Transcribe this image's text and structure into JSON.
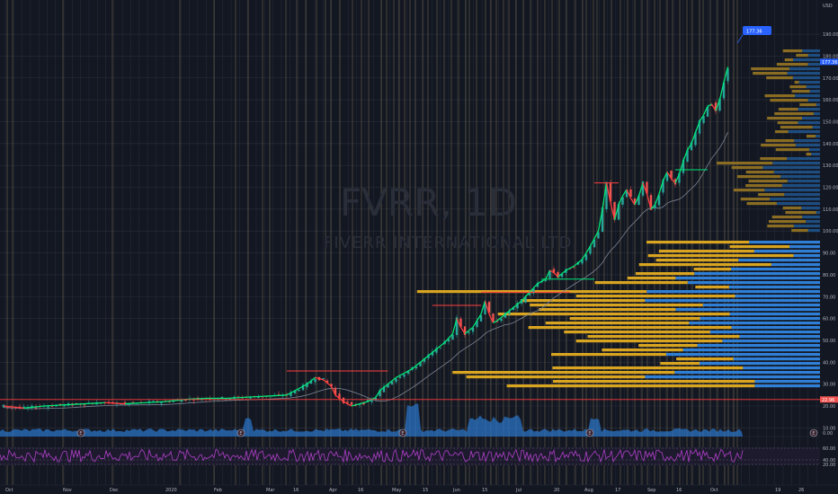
{
  "chart_data": {
    "type": "candlestick",
    "title": "FVRR, 1D",
    "subtitle": "FIVERR INTERNATIONAL LTD.",
    "currency": "USD",
    "y_ticks": [
      "190.00",
      "180.00",
      "170.00",
      "160.00",
      "150.00",
      "140.00",
      "130.00",
      "120.00",
      "110.00",
      "100.00",
      "90.00",
      "80.00",
      "70.00",
      "60.00",
      "50.00",
      "40.00",
      "30.00",
      "20.00",
      "10.00"
    ],
    "y_range": [
      10,
      190
    ],
    "x_ticks": [
      "Oct",
      "Nov",
      "Dec",
      "2020",
      "Feb",
      "Mar",
      "16",
      "Apr",
      "16",
      "May",
      "15",
      "Jun",
      "15",
      "Jul",
      "20",
      "Aug",
      "17",
      "Sep",
      "16",
      "Oct",
      "19",
      "26"
    ],
    "price_points": [
      [
        0,
        20
      ],
      [
        5,
        19
      ],
      [
        10,
        20
      ],
      [
        15,
        20.5
      ],
      [
        20,
        21
      ],
      [
        25,
        21.5
      ],
      [
        30,
        21
      ],
      [
        35,
        21.5
      ],
      [
        40,
        22
      ],
      [
        45,
        23
      ],
      [
        50,
        23.5
      ],
      [
        55,
        23.5
      ],
      [
        60,
        24
      ],
      [
        65,
        24.5
      ],
      [
        70,
        25
      ],
      [
        72,
        27
      ],
      [
        75,
        30
      ],
      [
        77,
        33
      ],
      [
        79,
        32
      ],
      [
        81,
        29
      ],
      [
        82,
        25
      ],
      [
        84,
        22
      ],
      [
        86,
        20
      ],
      [
        88,
        21
      ],
      [
        90,
        22
      ],
      [
        92,
        24
      ],
      [
        93,
        27
      ],
      [
        95,
        30
      ],
      [
        97,
        33
      ],
      [
        99,
        35
      ],
      [
        101,
        37
      ],
      [
        103,
        40
      ],
      [
        105,
        43
      ],
      [
        107,
        46
      ],
      [
        109,
        49
      ],
      [
        111,
        53
      ],
      [
        112,
        60
      ],
      [
        113,
        56
      ],
      [
        114,
        53
      ],
      [
        116,
        56
      ],
      [
        118,
        62
      ],
      [
        119,
        68
      ],
      [
        120,
        62
      ],
      [
        121,
        58
      ],
      [
        122,
        59
      ],
      [
        124,
        62
      ],
      [
        126,
        65
      ],
      [
        128,
        68
      ],
      [
        130,
        72
      ],
      [
        132,
        76
      ],
      [
        134,
        78
      ],
      [
        135,
        82
      ],
      [
        136,
        81
      ],
      [
        137,
        79
      ],
      [
        139,
        82
      ],
      [
        141,
        84
      ],
      [
        143,
        87
      ],
      [
        145,
        93
      ],
      [
        147,
        100
      ],
      [
        148,
        110
      ],
      [
        149,
        122
      ],
      [
        150,
        113
      ],
      [
        151,
        105
      ],
      [
        152,
        112
      ],
      [
        153,
        116
      ],
      [
        154,
        119
      ],
      [
        155,
        115
      ],
      [
        156,
        112
      ],
      [
        157,
        116
      ],
      [
        158,
        122
      ],
      [
        159,
        117
      ],
      [
        160,
        110
      ],
      [
        161,
        112
      ],
      [
        162,
        117
      ],
      [
        163,
        123
      ],
      [
        164,
        127
      ],
      [
        165,
        124
      ],
      [
        166,
        122
      ],
      [
        167,
        126
      ],
      [
        168,
        132
      ],
      [
        169,
        137
      ],
      [
        170,
        140
      ],
      [
        171,
        145
      ],
      [
        172,
        150
      ],
      [
        173,
        153
      ],
      [
        174,
        157
      ],
      [
        175,
        158
      ],
      [
        176,
        155
      ],
      [
        177,
        160
      ],
      [
        178,
        168
      ],
      [
        179,
        175
      ]
    ],
    "current_price": "177.36",
    "marker_price": "177.36",
    "reference_level": "22.96",
    "panes": [
      "price",
      "volume",
      "rsi"
    ],
    "volume_tick": "0.00",
    "rsi_ticks": [
      "60.00",
      "40.00",
      "20.00"
    ],
    "event_markers": [
      "E",
      "E",
      "E",
      "E",
      "E"
    ]
  },
  "colors": {
    "background": "#131722",
    "grid": "#2a2e39",
    "vline": "#b8a36a",
    "up": "#26a69a",
    "down": "#ef5350",
    "green_line": "#00e676",
    "red_line": "#ff3d3d",
    "ma": "#7c8595",
    "vp_blue": "#2f7fd6",
    "vp_gold": "#d9a521",
    "vp_gold_dark": "#8a6d22",
    "volume": "#2a73c4",
    "rsi": "#b040c8",
    "accent": "#2962ff"
  }
}
